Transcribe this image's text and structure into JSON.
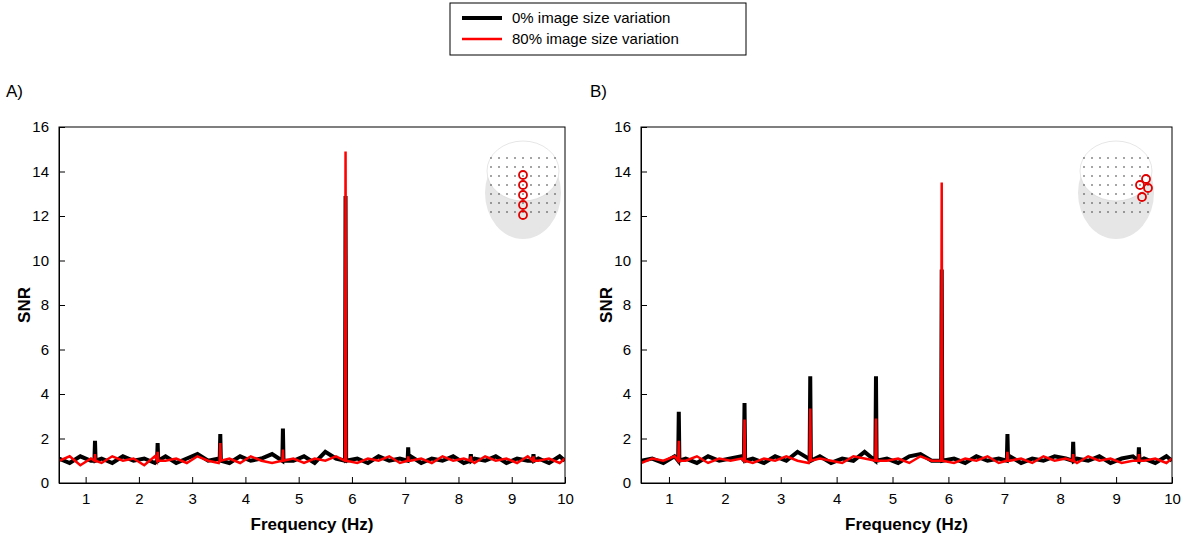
{
  "chart_data": [
    {
      "type": "line",
      "title": "A)",
      "xlabel": "Frequency (Hz)",
      "ylabel": "SNR",
      "xlim": [
        0.5,
        10
      ],
      "ylim": [
        0,
        16
      ],
      "xticks": [
        1,
        2,
        3,
        4,
        5,
        6,
        7,
        8,
        9,
        10
      ],
      "yticks": [
        0,
        2,
        4,
        6,
        8,
        10,
        12,
        14,
        16
      ],
      "grid": false,
      "legend": "top",
      "x": [
        0.5,
        0.7,
        0.9,
        1.1,
        1.165,
        1.176,
        1.187,
        1.3,
        1.5,
        1.7,
        1.9,
        2.1,
        2.3,
        2.341,
        2.352,
        2.363,
        2.5,
        2.7,
        2.9,
        3.1,
        3.3,
        3.5,
        3.517,
        3.528,
        3.539,
        3.7,
        3.9,
        4.1,
        4.3,
        4.5,
        4.693,
        4.704,
        4.715,
        4.9,
        5.1,
        5.3,
        5.5,
        5.7,
        5.869,
        5.88,
        5.891,
        6.1,
        6.3,
        6.5,
        6.7,
        6.9,
        7.045,
        7.056,
        7.067,
        7.1,
        7.3,
        7.5,
        7.7,
        7.9,
        8.1,
        8.221,
        8.232,
        8.243,
        8.3,
        8.5,
        8.7,
        8.9,
        9.1,
        9.3,
        9.397,
        9.408,
        9.419,
        9.5,
        9.7,
        9.9,
        10.0
      ],
      "series": [
        {
          "name": "0% image size variation",
          "color": "#000000",
          "values": [
            1.1,
            0.9,
            1.2,
            1.0,
            1.0,
            1.9,
            1.0,
            1.1,
            0.9,
            1.2,
            1.0,
            1.1,
            0.9,
            1.0,
            1.8,
            1.0,
            1.2,
            0.9,
            1.1,
            1.3,
            1.0,
            1.1,
            1.0,
            2.2,
            1.0,
            0.9,
            1.2,
            1.0,
            1.1,
            1.3,
            1.0,
            2.45,
            1.0,
            1.0,
            1.2,
            0.9,
            1.4,
            1.1,
            1.0,
            12.9,
            1.0,
            1.1,
            0.9,
            1.2,
            1.0,
            1.1,
            1.0,
            1.6,
            1.0,
            1.2,
            0.9,
            1.1,
            1.0,
            1.2,
            0.9,
            1.0,
            1.3,
            1.0,
            1.1,
            1.0,
            1.2,
            0.9,
            1.1,
            1.0,
            1.0,
            1.3,
            1.0,
            1.1,
            0.9,
            1.2,
            1.0
          ]
        },
        {
          "name": "80% image size variation",
          "color": "#ff0000",
          "values": [
            1.0,
            1.2,
            0.8,
            1.1,
            1.0,
            1.3,
            1.0,
            0.9,
            1.2,
            1.0,
            1.1,
            0.8,
            1.2,
            1.0,
            1.4,
            1.0,
            1.0,
            1.1,
            0.9,
            1.2,
            1.0,
            0.9,
            1.0,
            1.8,
            1.0,
            1.1,
            0.9,
            1.2,
            1.0,
            0.9,
            1.0,
            1.5,
            1.0,
            1.1,
            0.9,
            1.1,
            1.0,
            1.2,
            1.0,
            14.9,
            1.0,
            0.9,
            1.1,
            1.0,
            1.2,
            0.9,
            1.0,
            1.2,
            1.0,
            1.0,
            1.1,
            0.9,
            1.2,
            1.0,
            1.1,
            1.0,
            1.2,
            1.0,
            0.9,
            1.2,
            1.0,
            1.1,
            0.9,
            1.2,
            1.0,
            1.2,
            1.0,
            1.0,
            1.1,
            0.9,
            1.1
          ]
        }
      ]
    },
    {
      "type": "line",
      "title": "B)",
      "xlabel": "Frequency (Hz)",
      "ylabel": "SNR",
      "xlim": [
        0.5,
        10
      ],
      "ylim": [
        0,
        16
      ],
      "xticks": [
        1,
        2,
        3,
        4,
        5,
        6,
        7,
        8,
        9,
        10
      ],
      "yticks": [
        0,
        2,
        4,
        6,
        8,
        10,
        12,
        14,
        16
      ],
      "grid": false,
      "x": [
        0.5,
        0.7,
        0.9,
        1.1,
        1.165,
        1.176,
        1.187,
        1.3,
        1.5,
        1.7,
        1.9,
        2.1,
        2.3,
        2.341,
        2.352,
        2.363,
        2.5,
        2.7,
        2.9,
        3.1,
        3.3,
        3.5,
        3.517,
        3.528,
        3.539,
        3.7,
        3.9,
        4.1,
        4.3,
        4.5,
        4.693,
        4.704,
        4.715,
        4.9,
        5.1,
        5.3,
        5.5,
        5.7,
        5.869,
        5.88,
        5.891,
        6.1,
        6.3,
        6.5,
        6.7,
        6.9,
        7.045,
        7.056,
        7.067,
        7.1,
        7.3,
        7.5,
        7.7,
        7.9,
        8.1,
        8.221,
        8.232,
        8.243,
        8.3,
        8.5,
        8.7,
        8.9,
        9.1,
        9.3,
        9.397,
        9.408,
        9.419,
        9.5,
        9.7,
        9.9,
        10.0
      ],
      "series": [
        {
          "color": "#000000",
          "values": [
            1.0,
            1.1,
            0.9,
            1.2,
            1.0,
            3.2,
            1.0,
            1.1,
            0.9,
            1.2,
            1.0,
            1.1,
            1.2,
            1.0,
            3.6,
            1.0,
            1.1,
            0.9,
            1.2,
            1.0,
            1.4,
            1.1,
            1.0,
            4.8,
            1.0,
            1.2,
            0.9,
            1.1,
            1.0,
            1.4,
            1.0,
            4.8,
            1.0,
            1.1,
            0.9,
            1.2,
            1.3,
            1.0,
            1.0,
            9.6,
            1.0,
            1.1,
            0.9,
            1.2,
            1.0,
            1.1,
            1.0,
            2.2,
            1.0,
            1.2,
            0.9,
            1.1,
            1.0,
            1.2,
            1.1,
            1.0,
            1.85,
            1.0,
            1.1,
            1.0,
            1.2,
            0.9,
            1.1,
            1.2,
            1.0,
            1.6,
            1.0,
            1.1,
            0.9,
            1.2,
            1.0
          ]
        },
        {
          "color": "#ff0000",
          "values": [
            0.9,
            1.1,
            1.0,
            1.2,
            1.0,
            1.9,
            1.0,
            1.0,
            1.2,
            0.9,
            1.1,
            1.0,
            1.1,
            1.0,
            2.85,
            1.0,
            0.9,
            1.1,
            1.0,
            1.2,
            1.0,
            0.9,
            1.0,
            3.35,
            1.0,
            1.1,
            1.0,
            0.9,
            1.2,
            1.1,
            1.0,
            2.9,
            1.0,
            1.0,
            1.1,
            0.9,
            1.2,
            1.0,
            1.0,
            13.5,
            1.0,
            0.9,
            1.1,
            1.0,
            1.2,
            0.9,
            1.0,
            1.4,
            1.0,
            1.0,
            1.1,
            0.9,
            1.2,
            1.0,
            1.1,
            1.0,
            1.3,
            1.0,
            0.9,
            1.2,
            1.0,
            1.1,
            0.9,
            1.0,
            1.0,
            1.3,
            1.0,
            1.0,
            1.1,
            0.9,
            1.1
          ]
        }
      ]
    }
  ]
}
